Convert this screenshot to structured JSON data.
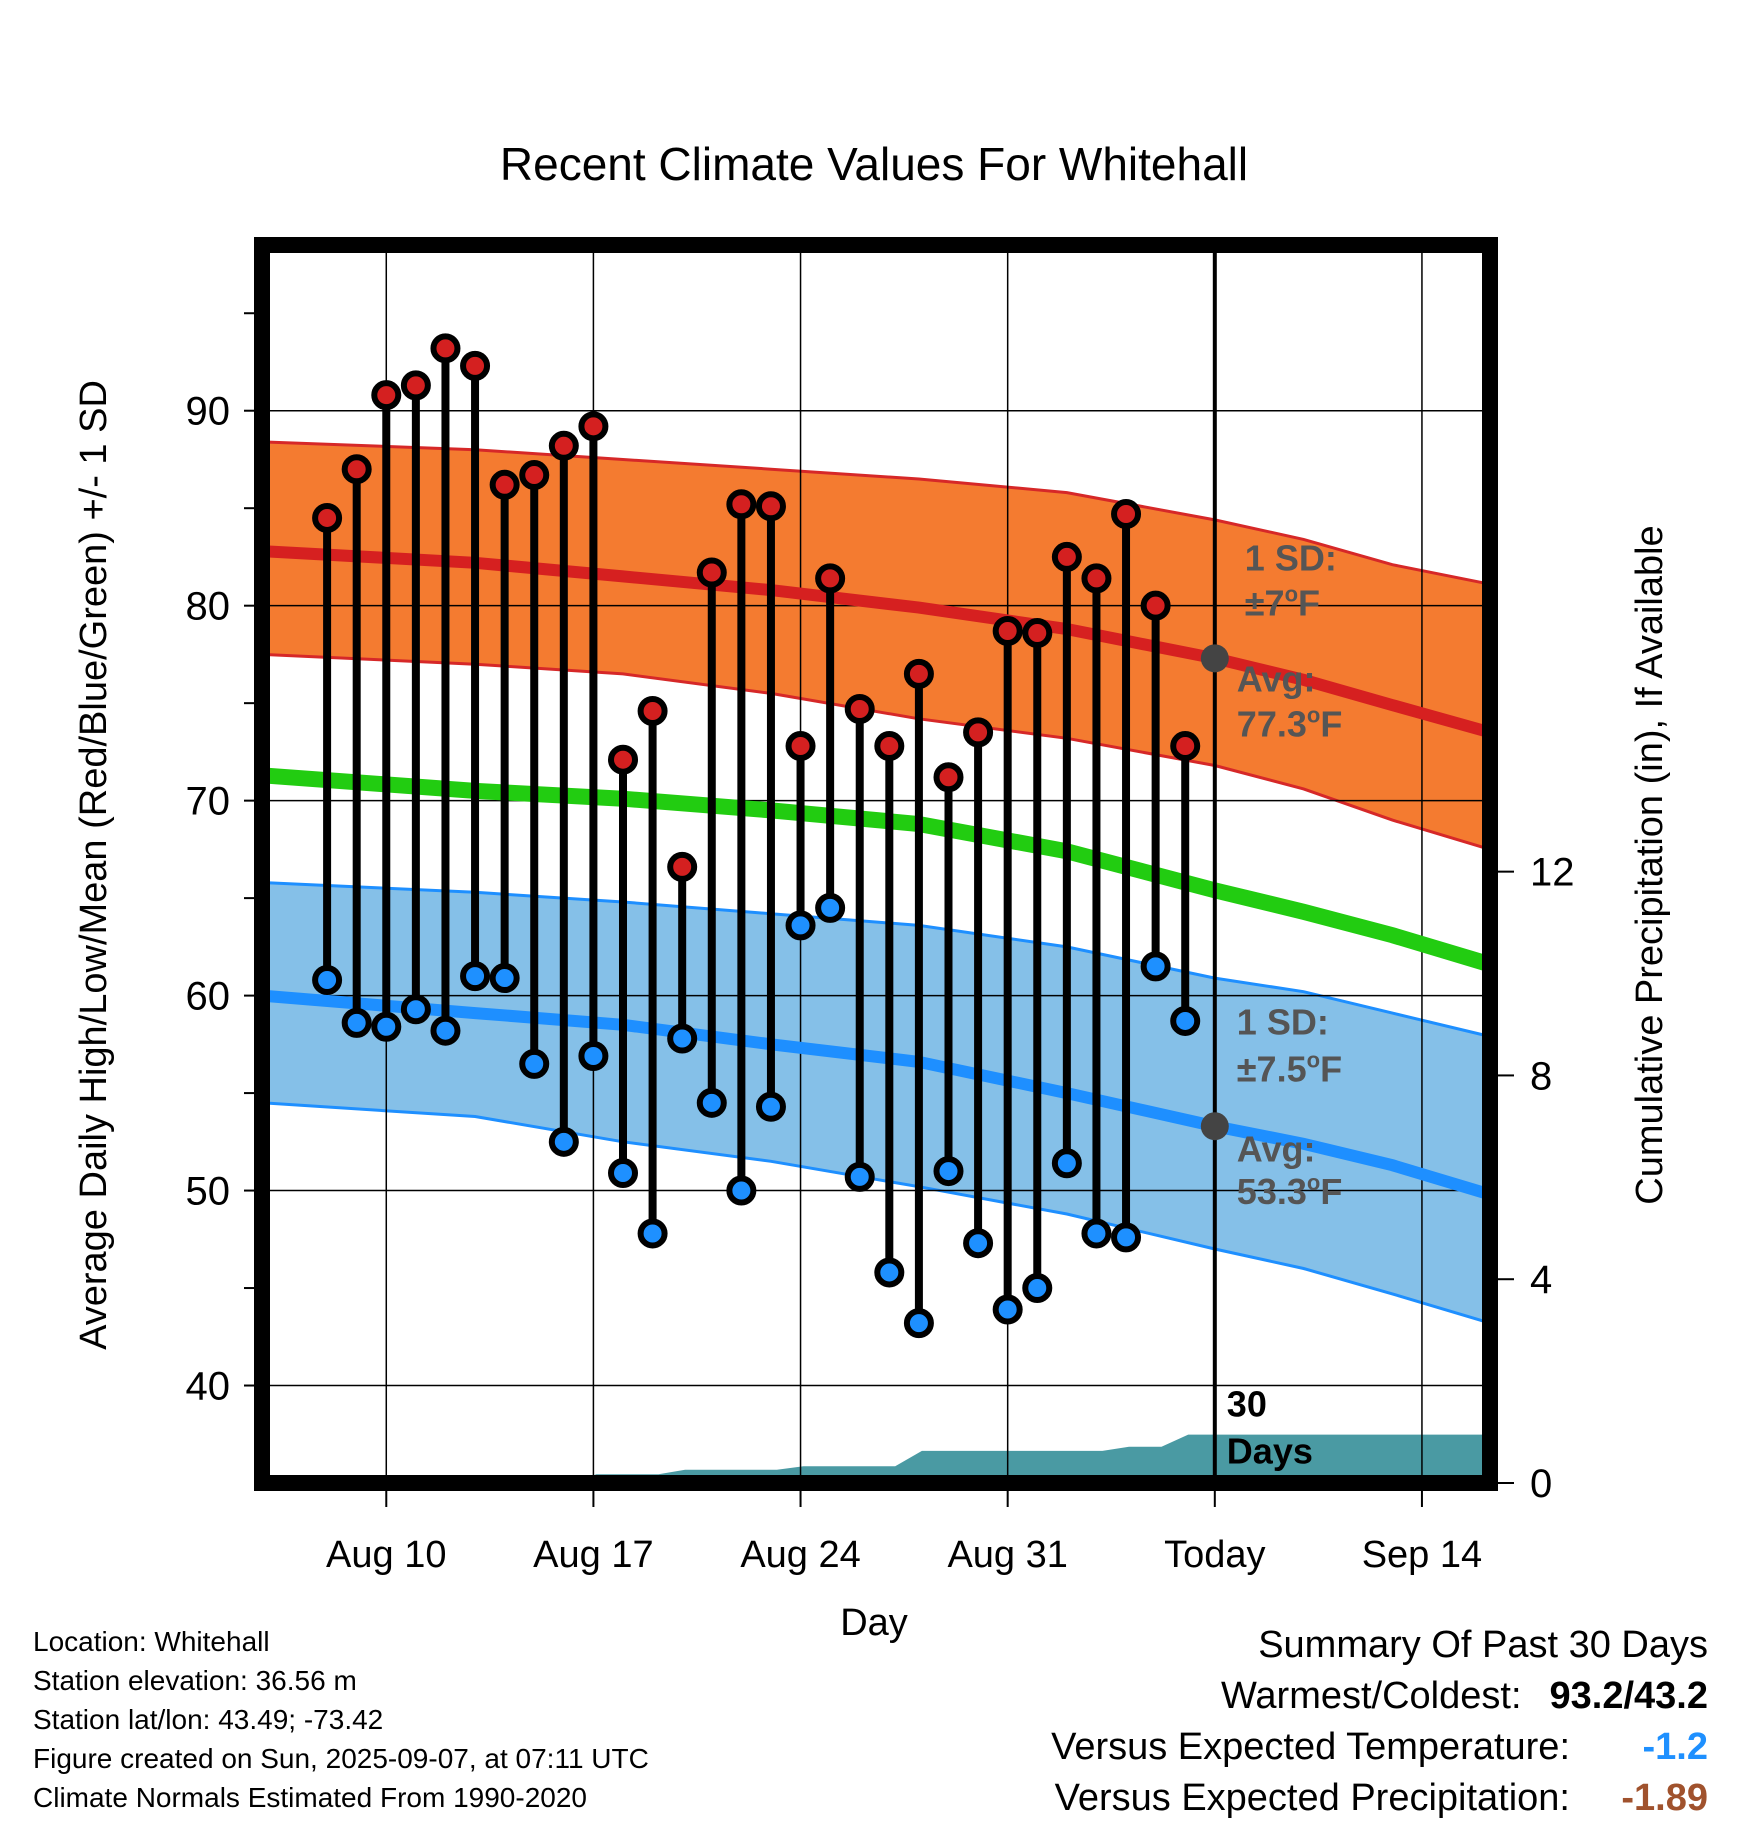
{
  "chart_data": {
    "type": "line",
    "title": "Recent Climate Values For Whitehall",
    "xlabel": "Day",
    "ylabel": "Average Daily High/Low/Mean (Red/Blue/Green) +/- 1 SD",
    "y2label": "Cumulative Precipitation (in), If Available",
    "ylim": [
      35,
      98.5
    ],
    "y2lim": [
      0,
      24.3
    ],
    "yticks": [
      40,
      50,
      60,
      70,
      80,
      90
    ],
    "y2ticks": [
      0,
      4,
      8,
      12
    ],
    "xlim": [
      -2.2,
      39.3
    ],
    "x_axis_start_date": "Aug 8",
    "xticks": [
      {
        "x": 2,
        "label": "Aug 10"
      },
      {
        "x": 9,
        "label": "Aug 17"
      },
      {
        "x": 16,
        "label": "Aug 24"
      },
      {
        "x": 23,
        "label": "Aug 31"
      },
      {
        "x": 30,
        "label": "Today"
      },
      {
        "x": 37,
        "label": "Sep 14"
      }
    ],
    "today_x": 30,
    "grid": true,
    "normals": {
      "x": [
        -2.2,
        5,
        10,
        15,
        20,
        25,
        30,
        33,
        36,
        39.3
      ],
      "high_mean": [
        82.8,
        82.2,
        81.5,
        80.8,
        79.9,
        78.8,
        77.3,
        76.2,
        74.9,
        73.5
      ],
      "high_upper": [
        88.4,
        88.0,
        87.5,
        87.0,
        86.5,
        85.8,
        84.4,
        83.4,
        82.1,
        81.1
      ],
      "high_lower": [
        77.5,
        77.0,
        76.5,
        75.5,
        74.2,
        73.2,
        71.8,
        70.6,
        69.0,
        67.5
      ],
      "mean": [
        71.3,
        70.5,
        70.1,
        69.5,
        68.8,
        67.4,
        65.4,
        64.3,
        63.1,
        61.6
      ],
      "low_mean": [
        60.0,
        59.1,
        58.5,
        57.5,
        56.6,
        55.0,
        53.3,
        52.4,
        51.3,
        49.8
      ],
      "low_upper": [
        65.8,
        65.3,
        64.8,
        64.2,
        63.6,
        62.5,
        60.9,
        60.2,
        59.1,
        57.9
      ],
      "low_lower": [
        54.5,
        53.8,
        52.5,
        51.5,
        50.2,
        48.8,
        47.0,
        46.0,
        44.7,
        43.2
      ]
    },
    "series": [
      {
        "name": "High",
        "color": "#d42020",
        "x": [
          0,
          1,
          2,
          3,
          4,
          5,
          6,
          7,
          8,
          9,
          10,
          11,
          12,
          13,
          14,
          15,
          16,
          17,
          18,
          19,
          20,
          21,
          22,
          23,
          24,
          25,
          26,
          27,
          28,
          29
        ],
        "values": [
          84.5,
          87.0,
          90.8,
          91.3,
          93.2,
          92.3,
          86.2,
          86.7,
          88.2,
          89.2,
          72.1,
          74.6,
          66.6,
          81.7,
          85.2,
          85.1,
          72.8,
          81.4,
          74.7,
          72.8,
          76.5,
          71.2,
          73.5,
          78.7,
          78.6,
          82.5,
          81.4,
          84.7,
          80.0,
          72.8
        ]
      },
      {
        "name": "Low",
        "color": "#1e90ff",
        "x": [
          0,
          1,
          2,
          3,
          4,
          5,
          6,
          7,
          8,
          9,
          10,
          11,
          12,
          13,
          14,
          15,
          16,
          17,
          18,
          19,
          20,
          21,
          22,
          23,
          24,
          25,
          26,
          27,
          28,
          29
        ],
        "values": [
          60.8,
          58.6,
          58.4,
          59.3,
          58.2,
          61.0,
          60.9,
          56.5,
          52.5,
          56.9,
          50.9,
          47.8,
          57.8,
          54.5,
          50.0,
          54.3,
          63.6,
          64.5,
          50.7,
          45.8,
          43.2,
          51.0,
          47.3,
          43.9,
          45.0,
          51.4,
          47.8,
          47.6,
          61.5,
          58.7
        ]
      }
    ],
    "precip": {
      "x": [
        -2.2,
        8.2,
        9.1,
        11.2,
        12.1,
        15.2,
        16.1,
        19.2,
        20.1,
        23.2,
        26.2,
        27.1,
        28.2,
        29.1,
        30.0,
        39.3
      ],
      "values": [
        0,
        0,
        0.17,
        0.17,
        0.26,
        0.26,
        0.33,
        0.33,
        0.63,
        0.63,
        0.63,
        0.71,
        0.71,
        0.95,
        0.95,
        0.95
      ]
    },
    "annotations": {
      "high_sd": "1 SD:",
      "high_sd_value": "±7",
      "high_avg": "Avg:",
      "high_avg_value": "77.3",
      "low_sd": "1 SD:",
      "low_sd_value": "±7.5",
      "low_avg": "Avg:",
      "low_avg_value": "53.3",
      "unit": "F",
      "degree_symbol": "o",
      "days_1": "30",
      "days_2": "Days"
    },
    "colors": {
      "high_band": "#f47b30",
      "high_band_edge": "#d62828",
      "high_line": "#d62020",
      "mean_line": "#22cc11",
      "low_band": "#85c0e8",
      "low_band_edge": "#1e8fff",
      "low_line": "#1e8fff",
      "precip": "#4a9aa3",
      "annotation": "#555555",
      "today_dot": "#444444"
    }
  },
  "footer": {
    "location": "Location: Whitehall",
    "elevation": "Station elevation: 36.56 m",
    "latlon": "Station lat/lon: 43.49; -73.42",
    "created": "Figure created on Sun, 2025-09-07, at 07:11 UTC",
    "normals": "Climate Normals Estimated From 1990-2020"
  },
  "summary": {
    "title": "Summary Of Past 30 Days",
    "warm_cold_label": "Warmest/Coldest:",
    "warm_cold_value": "93.2/43.2",
    "temp_label": "Versus Expected Temperature:",
    "temp_value": "-1.2",
    "temp_color": "#1e90ff",
    "precip_label": "Versus Expected Precipitation:",
    "precip_value": "-1.89",
    "precip_color": "#a0522d"
  }
}
